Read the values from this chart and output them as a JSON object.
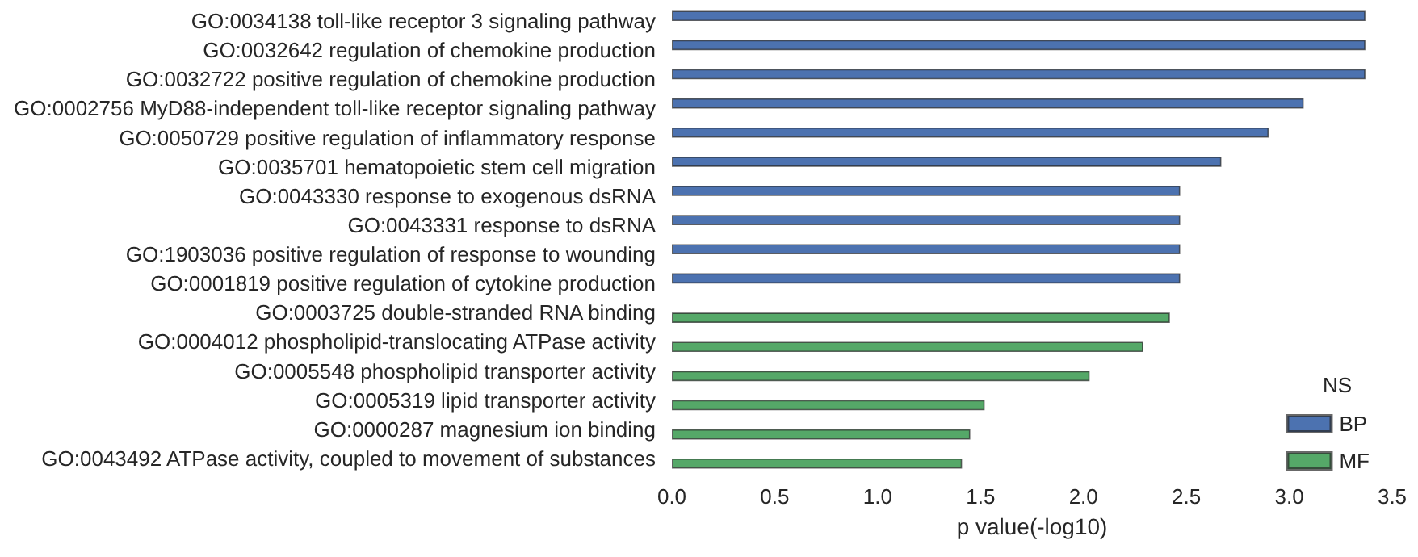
{
  "chart_data": {
    "type": "bar",
    "orientation": "horizontal",
    "xlabel": "p value(-log10)",
    "categories": [
      "GO:0034138 toll-like receptor 3 signaling pathway",
      "GO:0032642 regulation of chemokine production",
      "GO:0032722 positive regulation of chemokine production",
      "GO:0002756 MyD88-independent toll-like receptor signaling pathway",
      "GO:0050729 positive regulation of inflammatory response",
      "GO:0035701 hematopoietic stem cell migration",
      "GO:0043330 response to exogenous dsRNA",
      "GO:0043331 response to dsRNA",
      "GO:1903036 positive regulation of response to wounding",
      "GO:0001819 positive regulation of cytokine production",
      "GO:0003725 double-stranded RNA binding",
      "GO:0004012 phospholipid-translocating ATPase activity",
      "GO:0005548 phospholipid transporter activity",
      "GO:0005319 lipid transporter activity",
      "GO:0000287 magnesium ion binding",
      "GO:0043492 ATPase activity, coupled to movement of substances"
    ],
    "series": [
      {
        "name": "BP",
        "color": "#4c72b0",
        "values": [
          3.37,
          3.37,
          3.37,
          3.07,
          2.9,
          2.67,
          2.47,
          2.47,
          2.47,
          2.47,
          null,
          null,
          null,
          null,
          null,
          null
        ]
      },
      {
        "name": "MF",
        "color": "#55a868",
        "values": [
          null,
          null,
          null,
          null,
          null,
          null,
          null,
          null,
          null,
          null,
          2.42,
          2.29,
          2.03,
          1.52,
          1.45,
          1.41
        ]
      }
    ],
    "xlim": [
      0,
      3.5
    ],
    "xticks": [
      {
        "value": 0,
        "label": "0.0"
      },
      0.5,
      {
        "value": 1,
        "label": "1.0"
      },
      1.5,
      {
        "value": 2,
        "label": "2.0"
      },
      2.5,
      {
        "value": 3,
        "label": "3.0"
      },
      3.5
    ],
    "legend": "bottom right",
    "legend_title": "NS",
    "grid": false
  }
}
